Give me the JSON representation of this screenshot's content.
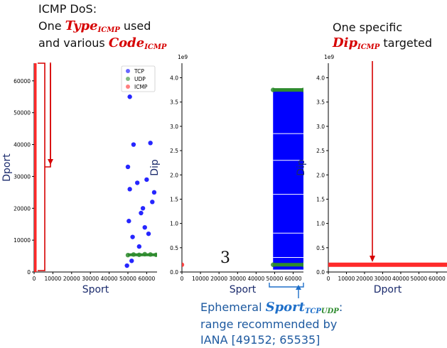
{
  "annotations": {
    "icmp_dos_title": "ICMP DoS:",
    "icmp_line2_pre": "One ",
    "icmp_type_main": "Type",
    "icmp_type_sub": "ICMP",
    "icmp_line2_post": " used",
    "icmp_line3_pre": "and various ",
    "icmp_code_main": "Code",
    "icmp_code_sub": "ICMP",
    "specific_line1": "One specific",
    "dip_main": "Dip",
    "dip_sub": "ICMP",
    "targeted": " targeted",
    "ephemeral_pre": "Ephemeral ",
    "sport_main": "Sport",
    "sport_sub_tcp": "TCP",
    "sport_sub_udp": "UDP",
    "ephemeral_post": ":",
    "range_line1": "range recommended by",
    "range_line2": "IANA [49152; 65535]",
    "panel_number": "3"
  },
  "colors": {
    "tcp": "#0000ff",
    "udp": "#2e8b2e",
    "icmp": "#ff2a2a",
    "annotation_red": "#d60000",
    "annotation_blue": "#1e6fc9"
  },
  "chart_data": [
    {
      "type": "scatter",
      "xlabel": "Sport",
      "ylabel": "Dport",
      "xticks": [
        "0",
        "10000",
        "20000",
        "30000",
        "40000",
        "50000",
        "60000"
      ],
      "yticks": [
        "0",
        "10000",
        "20000",
        "30000",
        "40000",
        "50000",
        "60000"
      ],
      "xlim": [
        0,
        65535
      ],
      "ylim": [
        0,
        65535
      ],
      "legend": {
        "placement": "top-right",
        "entries": [
          "TCP",
          "UDP",
          "ICMP"
        ]
      },
      "series": [
        {
          "name": "TCP",
          "color": "#0000ff",
          "points": [
            [
              49500,
              2000
            ],
            [
              52000,
              3500
            ],
            [
              56000,
              8000
            ],
            [
              61000,
              12000
            ],
            [
              50500,
              16000
            ],
            [
              58000,
              20000
            ],
            [
              63000,
              22000
            ],
            [
              51000,
              26000
            ],
            [
              55000,
              28000
            ],
            [
              60000,
              29000
            ],
            [
              50000,
              33000
            ],
            [
              53000,
              40000
            ],
            [
              62000,
              40500
            ],
            [
              51000,
              55000
            ],
            [
              57000,
              18500
            ],
            [
              64000,
              25000
            ],
            [
              52500,
              11000
            ],
            [
              59000,
              14000
            ]
          ]
        },
        {
          "name": "UDP",
          "color": "#2e8b2e",
          "points": [
            [
              50000,
              5300
            ],
            [
              53000,
              5500
            ],
            [
              56000,
              5400
            ],
            [
              59000,
              5600
            ],
            [
              62000,
              5500
            ],
            [
              65000,
              5400
            ]
          ]
        },
        {
          "name": "ICMP",
          "color": "#ff2a2a",
          "points": [
            [
              0,
              0
            ],
            [
              0,
              10000
            ],
            [
              0,
              20000
            ],
            [
              0,
              30000
            ],
            [
              0,
              40000
            ],
            [
              0,
              50000
            ],
            [
              0,
              60000
            ],
            [
              0,
              65535
            ]
          ]
        }
      ]
    },
    {
      "type": "scatter",
      "xlabel": "Sport",
      "ylabel": "Dip",
      "scale_label": "1e9",
      "xticks": [
        "0",
        "10000",
        "20000",
        "30000",
        "40000",
        "50000",
        "60000"
      ],
      "yticks": [
        "0.0",
        "0.5",
        "1.0",
        "1.5",
        "2.0",
        "2.5",
        "3.0",
        "3.5",
        "4.0"
      ],
      "xlim": [
        0,
        65535
      ],
      "ylim": [
        0,
        4.3
      ],
      "series": [
        {
          "name": "TCP",
          "color": "#0000ff",
          "x_range": [
            49152,
            65535
          ],
          "y_range": [
            0.05,
            3.75
          ]
        },
        {
          "name": "UDP",
          "color": "#2e8b2e",
          "points": [
            [
              49152,
              3.75
            ],
            [
              65535,
              3.75
            ],
            [
              49152,
              0.15
            ],
            [
              65535,
              0.15
            ]
          ]
        },
        {
          "name": "ICMP",
          "color": "#ff2a2a",
          "points": [
            [
              0,
              0.15
            ]
          ]
        }
      ]
    },
    {
      "type": "scatter",
      "xlabel": "Dport",
      "ylabel": "Dip",
      "scale_label": "1e9",
      "xticks": [
        "0",
        "10000",
        "20000",
        "30000",
        "40000",
        "50000",
        "60000"
      ],
      "yticks": [
        "0.0",
        "0.5",
        "1.0",
        "1.5",
        "2.0",
        "2.5",
        "3.0",
        "3.5",
        "4.0"
      ],
      "xlim": [
        0,
        65535
      ],
      "ylim": [
        0,
        4.3
      ],
      "series": [
        {
          "name": "ICMP",
          "color": "#ff2a2a",
          "x_range": [
            0,
            65535
          ],
          "y_value": 0.15
        }
      ]
    }
  ]
}
